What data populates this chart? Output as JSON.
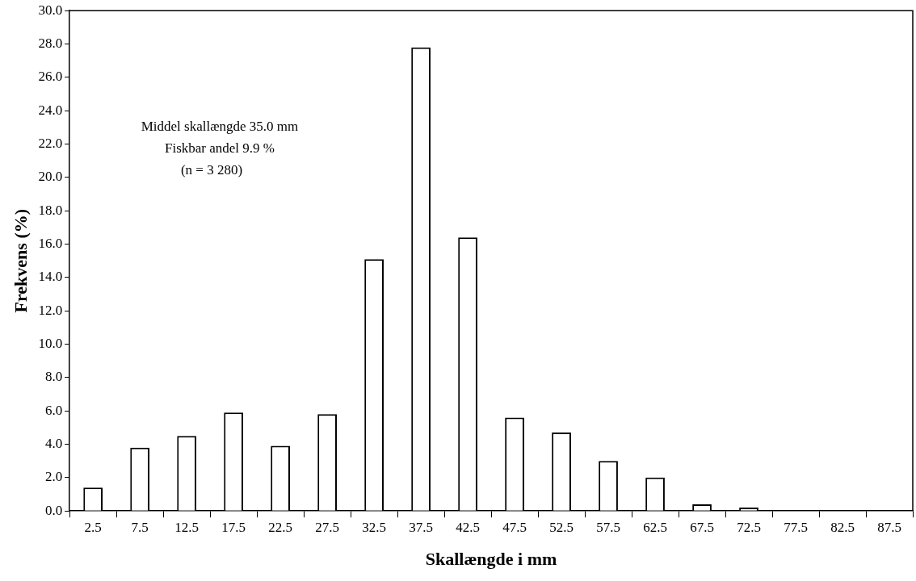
{
  "chart_data": {
    "type": "bar",
    "xlabel": "Skallængde i mm",
    "ylabel": "Frekvens (%)",
    "categories": [
      "2.5",
      "7.5",
      "12.5",
      "17.5",
      "22.5",
      "27.5",
      "32.5",
      "37.5",
      "42.5",
      "47.5",
      "52.5",
      "57.5",
      "62.5",
      "67.5",
      "72.5",
      "77.5",
      "82.5",
      "87.5"
    ],
    "values": [
      1.4,
      3.8,
      4.5,
      5.9,
      3.9,
      5.8,
      15.1,
      27.8,
      16.4,
      5.6,
      4.7,
      3.0,
      2.0,
      0.4,
      0.2,
      0,
      0,
      0
    ],
    "color": "#ffffff",
    "ylim": [
      0,
      30
    ],
    "yticks": [
      {
        "value": 0,
        "label": "0.0"
      },
      {
        "value": 2,
        "label": "2.0"
      },
      {
        "value": 4,
        "label": "4.0"
      },
      {
        "value": 6,
        "label": "6.0"
      },
      {
        "value": 8,
        "label": "8.0"
      },
      {
        "value": 10,
        "label": "10.0"
      },
      {
        "value": 12,
        "label": "12.0"
      },
      {
        "value": 14,
        "label": "14.0"
      },
      {
        "value": 16,
        "label": "16.0"
      },
      {
        "value": 18,
        "label": "18.0"
      },
      {
        "value": 20,
        "label": "20.0"
      },
      {
        "value": 22,
        "label": "22.0"
      },
      {
        "value": 24,
        "label": "24.0"
      },
      {
        "value": 26,
        "label": "26.0"
      },
      {
        "value": 28,
        "label": "28.0"
      },
      {
        "value": 30,
        "label": "30.0"
      }
    ],
    "grid": false,
    "legend": false,
    "annotations": [
      "Middel skallængde 35.0 mm",
      "Fiskbar andel 9.9 %",
      "(n = 3 280)"
    ]
  }
}
